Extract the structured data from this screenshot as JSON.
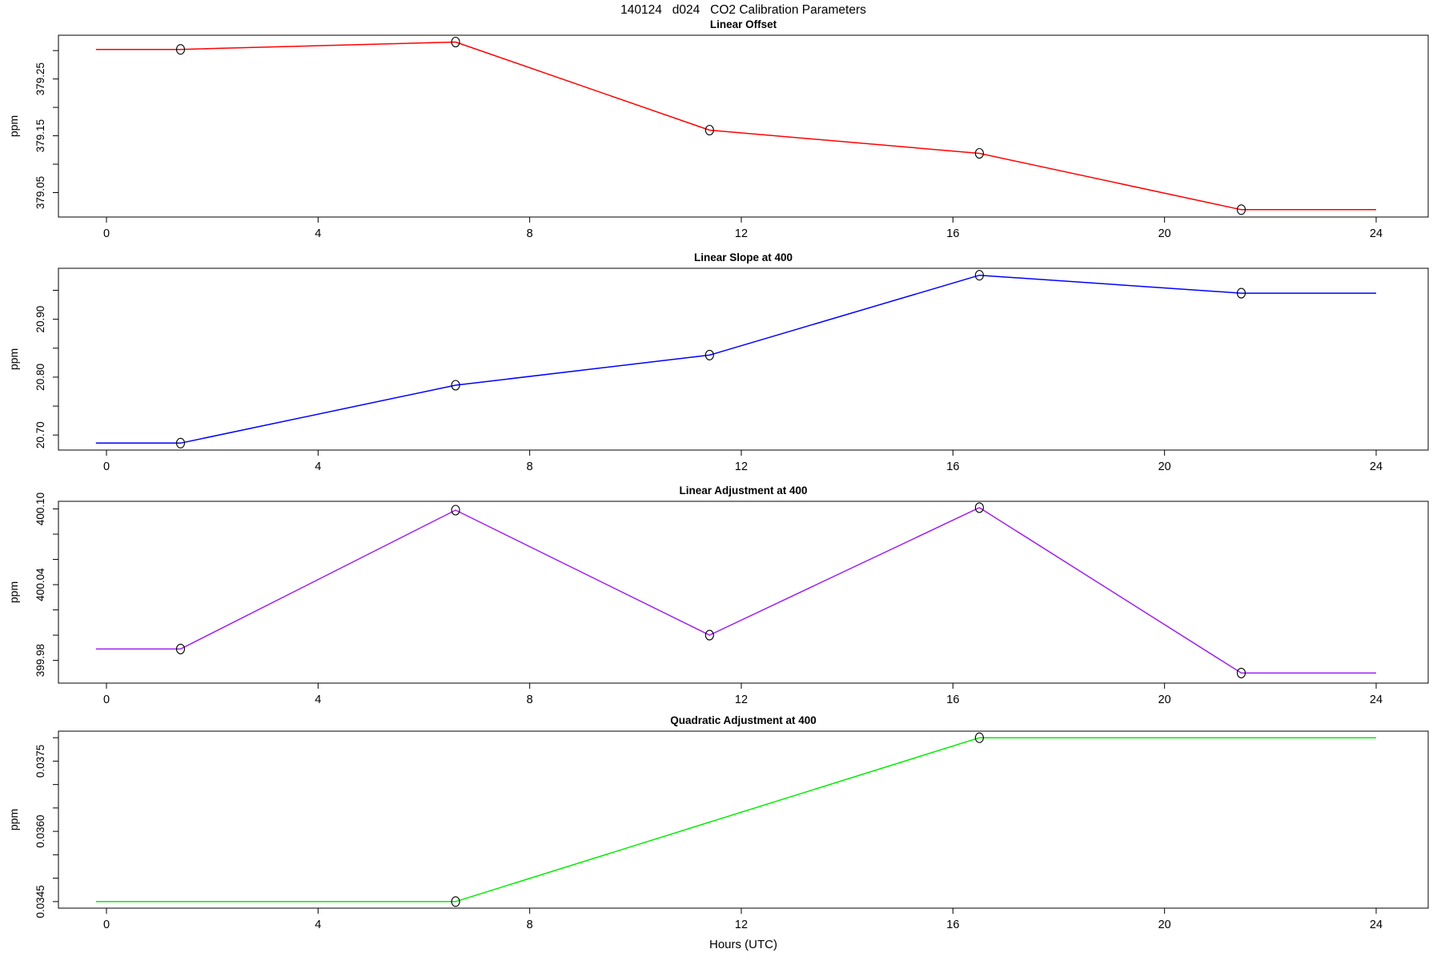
{
  "page": {
    "background": "#ffffff"
  },
  "chart_data": {
    "type": "line",
    "suptitle": "140124   d024   CO2 Calibration Parameters",
    "xlabel": "Hours (UTC)",
    "x_ticks": [
      0,
      4,
      8,
      12,
      16,
      20,
      24
    ],
    "x_range_hours": [
      0,
      24
    ],
    "line_span_hours": [
      -0.2,
      24
    ],
    "grid": false,
    "legend": "none",
    "marker": "open-circle",
    "marker_color": "#000000",
    "frame_color": "#000000",
    "panels": [
      {
        "title": "Linear Offset",
        "ylabel": "ppm",
        "color": "#ff0000",
        "x_hours": [
          1.4,
          6.6,
          11.4,
          16.5,
          21.45
        ],
        "values": [
          379.302,
          379.315,
          379.16,
          379.119,
          379.02
        ],
        "yticks": [
          379.05,
          379.1,
          379.15,
          379.2,
          379.25,
          379.3
        ],
        "ytick_labels": [
          "379.05",
          "",
          "379.15",
          "",
          "379.25",
          ""
        ],
        "ylim": [
          379.007,
          379.327
        ]
      },
      {
        "title": "Linear Slope at 400",
        "ylabel": "ppm",
        "color": "#0000ff",
        "x_hours": [
          1.4,
          6.6,
          11.4,
          16.5,
          21.45
        ],
        "values": [
          20.686,
          20.786,
          20.838,
          20.976,
          20.945
        ],
        "yticks": [
          20.7,
          20.75,
          20.8,
          20.85,
          20.9,
          20.95
        ],
        "ytick_labels": [
          "20.70",
          "",
          "20.80",
          "",
          "20.90",
          ""
        ],
        "ylim": [
          20.674,
          20.988
        ]
      },
      {
        "title": "Linear Adjustment at 400",
        "ylabel": "ppm",
        "color": "#a020f0",
        "x_hours": [
          1.4,
          6.6,
          11.4,
          16.5,
          21.45
        ],
        "values": [
          399.989,
          400.099,
          400.0,
          400.101,
          399.97
        ],
        "yticks": [
          399.98,
          400.0,
          400.02,
          400.04,
          400.06,
          400.08,
          400.1
        ],
        "ytick_labels": [
          "399.98",
          "",
          "",
          "400.04",
          "",
          "",
          "400.10"
        ],
        "ylim": [
          399.962,
          400.106
        ]
      },
      {
        "title": "Quadratic Adjustment at 400",
        "ylabel": "ppm",
        "color": "#00ee00",
        "x_hours": [
          6.6,
          16.5
        ],
        "values": [
          0.0345,
          0.038
        ],
        "yticks": [
          0.0345,
          0.035,
          0.0355,
          0.036,
          0.0365,
          0.037,
          0.0375,
          0.038
        ],
        "ytick_labels": [
          "0.0345",
          "",
          "",
          "0.0360",
          "",
          "",
          "0.0375",
          ""
        ],
        "ylim": [
          0.03436,
          0.03814
        ]
      }
    ]
  }
}
